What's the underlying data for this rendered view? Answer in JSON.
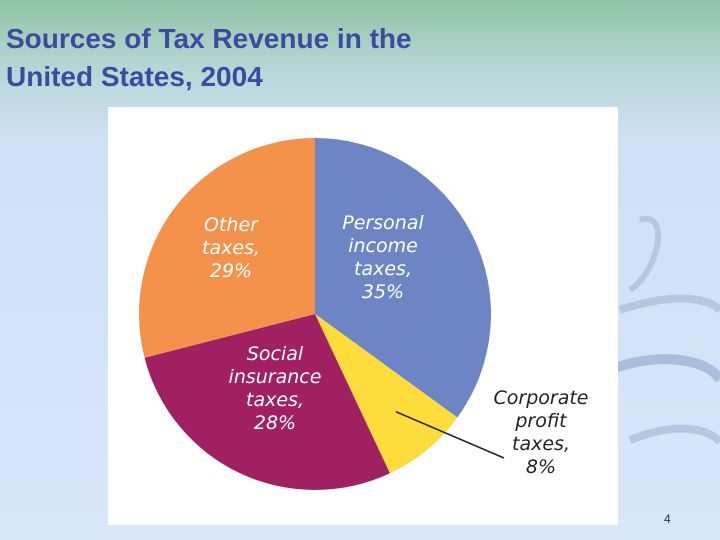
{
  "slide": {
    "title": "Sources of Tax Revenue in the\nUnited States, 2004",
    "page_number": "4",
    "colors": {
      "title": "#3e4aa0",
      "personal": "#6d85c5",
      "corporate": "#fddc3c",
      "social": "#a02062",
      "other": "#f4924c"
    }
  },
  "chart_data": {
    "type": "pie",
    "title": "Sources of Tax Revenue in the United States, 2004",
    "slices": [
      {
        "label_lines": [
          "Personal",
          "income",
          "taxes,",
          "35%"
        ],
        "value": 35,
        "color": "#6d85c5"
      },
      {
        "label_lines": [
          "Corporate",
          "profit",
          "taxes,",
          "8%"
        ],
        "value": 8,
        "color": "#fddc3c"
      },
      {
        "label_lines": [
          "Social",
          "insurance",
          "taxes,",
          "28%"
        ],
        "value": 28,
        "color": "#a02062"
      },
      {
        "label_lines": [
          "Other",
          "taxes,",
          "29%"
        ],
        "value": 29,
        "color": "#f4924c"
      }
    ],
    "start_angle": "12 o'clock",
    "direction": "clockwise",
    "legend": "none (labels inside slices; corporate label outside with leader line)"
  }
}
